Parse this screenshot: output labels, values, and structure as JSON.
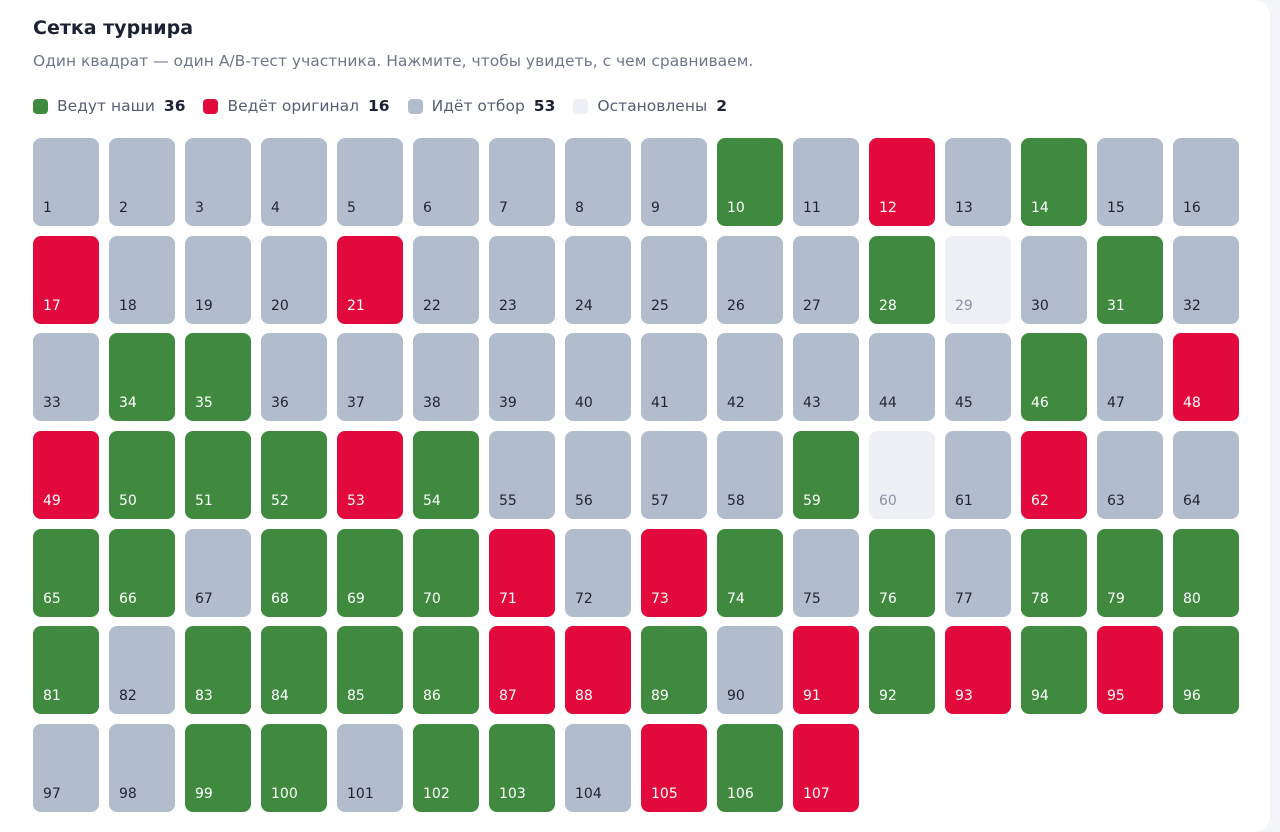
{
  "header": {
    "title": "Сетка турнира",
    "subtitle": "Один квадрат — один A/B-тест участника. Нажмите, чтобы увидеть, с чем сравниваем."
  },
  "legend": [
    {
      "status": "ours",
      "label": "Ведут наши",
      "count": "36",
      "color": "#3f8a3f"
    },
    {
      "status": "orig",
      "label": "Ведёт оригинал",
      "count": "16",
      "color": "#e2093c"
    },
    {
      "status": "pending",
      "label": "Идёт отбор",
      "count": "53",
      "color": "#b1bccd"
    },
    {
      "status": "stopped",
      "label": "Остановлены",
      "count": "2",
      "color": "#eef0f5"
    }
  ],
  "grid": {
    "cells": [
      {
        "number": "1",
        "status": "pending"
      },
      {
        "number": "2",
        "status": "pending"
      },
      {
        "number": "3",
        "status": "pending"
      },
      {
        "number": "4",
        "status": "pending"
      },
      {
        "number": "5",
        "status": "pending"
      },
      {
        "number": "6",
        "status": "pending"
      },
      {
        "number": "7",
        "status": "pending"
      },
      {
        "number": "8",
        "status": "pending"
      },
      {
        "number": "9",
        "status": "pending"
      },
      {
        "number": "10",
        "status": "ours"
      },
      {
        "number": "11",
        "status": "pending"
      },
      {
        "number": "12",
        "status": "orig"
      },
      {
        "number": "13",
        "status": "pending"
      },
      {
        "number": "14",
        "status": "ours"
      },
      {
        "number": "15",
        "status": "pending"
      },
      {
        "number": "16",
        "status": "pending"
      },
      {
        "number": "17",
        "status": "orig"
      },
      {
        "number": "18",
        "status": "pending"
      },
      {
        "number": "19",
        "status": "pending"
      },
      {
        "number": "20",
        "status": "pending"
      },
      {
        "number": "21",
        "status": "orig"
      },
      {
        "number": "22",
        "status": "pending"
      },
      {
        "number": "23",
        "status": "pending"
      },
      {
        "number": "24",
        "status": "pending"
      },
      {
        "number": "25",
        "status": "pending"
      },
      {
        "number": "26",
        "status": "pending"
      },
      {
        "number": "27",
        "status": "pending"
      },
      {
        "number": "28",
        "status": "ours"
      },
      {
        "number": "29",
        "status": "stopped"
      },
      {
        "number": "30",
        "status": "pending"
      },
      {
        "number": "31",
        "status": "ours"
      },
      {
        "number": "32",
        "status": "pending"
      },
      {
        "number": "33",
        "status": "pending"
      },
      {
        "number": "34",
        "status": "ours"
      },
      {
        "number": "35",
        "status": "ours"
      },
      {
        "number": "36",
        "status": "pending"
      },
      {
        "number": "37",
        "status": "pending"
      },
      {
        "number": "38",
        "status": "pending"
      },
      {
        "number": "39",
        "status": "pending"
      },
      {
        "number": "40",
        "status": "pending"
      },
      {
        "number": "41",
        "status": "pending"
      },
      {
        "number": "42",
        "status": "pending"
      },
      {
        "number": "43",
        "status": "pending"
      },
      {
        "number": "44",
        "status": "pending"
      },
      {
        "number": "45",
        "status": "pending"
      },
      {
        "number": "46",
        "status": "ours"
      },
      {
        "number": "47",
        "status": "pending"
      },
      {
        "number": "48",
        "status": "orig"
      },
      {
        "number": "49",
        "status": "orig"
      },
      {
        "number": "50",
        "status": "ours"
      },
      {
        "number": "51",
        "status": "ours"
      },
      {
        "number": "52",
        "status": "ours"
      },
      {
        "number": "53",
        "status": "orig"
      },
      {
        "number": "54",
        "status": "ours"
      },
      {
        "number": "55",
        "status": "pending"
      },
      {
        "number": "56",
        "status": "pending"
      },
      {
        "number": "57",
        "status": "pending"
      },
      {
        "number": "58",
        "status": "pending"
      },
      {
        "number": "59",
        "status": "ours"
      },
      {
        "number": "60",
        "status": "stopped"
      },
      {
        "number": "61",
        "status": "pending"
      },
      {
        "number": "62",
        "status": "orig"
      },
      {
        "number": "63",
        "status": "pending"
      },
      {
        "number": "64",
        "status": "pending"
      },
      {
        "number": "65",
        "status": "ours"
      },
      {
        "number": "66",
        "status": "ours"
      },
      {
        "number": "67",
        "status": "pending"
      },
      {
        "number": "68",
        "status": "ours"
      },
      {
        "number": "69",
        "status": "ours"
      },
      {
        "number": "70",
        "status": "ours"
      },
      {
        "number": "71",
        "status": "orig"
      },
      {
        "number": "72",
        "status": "pending"
      },
      {
        "number": "73",
        "status": "orig"
      },
      {
        "number": "74",
        "status": "ours"
      },
      {
        "number": "75",
        "status": "pending"
      },
      {
        "number": "76",
        "status": "ours"
      },
      {
        "number": "77",
        "status": "pending"
      },
      {
        "number": "78",
        "status": "ours"
      },
      {
        "number": "79",
        "status": "ours"
      },
      {
        "number": "80",
        "status": "ours"
      },
      {
        "number": "81",
        "status": "ours"
      },
      {
        "number": "82",
        "status": "pending"
      },
      {
        "number": "83",
        "status": "ours"
      },
      {
        "number": "84",
        "status": "ours"
      },
      {
        "number": "85",
        "status": "ours"
      },
      {
        "number": "86",
        "status": "ours"
      },
      {
        "number": "87",
        "status": "orig"
      },
      {
        "number": "88",
        "status": "orig"
      },
      {
        "number": "89",
        "status": "ours"
      },
      {
        "number": "90",
        "status": "pending"
      },
      {
        "number": "91",
        "status": "orig"
      },
      {
        "number": "92",
        "status": "ours"
      },
      {
        "number": "93",
        "status": "orig"
      },
      {
        "number": "94",
        "status": "ours"
      },
      {
        "number": "95",
        "status": "orig"
      },
      {
        "number": "96",
        "status": "ours"
      },
      {
        "number": "97",
        "status": "pending"
      },
      {
        "number": "98",
        "status": "pending"
      },
      {
        "number": "99",
        "status": "ours"
      },
      {
        "number": "100",
        "status": "ours"
      },
      {
        "number": "101",
        "status": "pending"
      },
      {
        "number": "102",
        "status": "ours"
      },
      {
        "number": "103",
        "status": "ours"
      },
      {
        "number": "104",
        "status": "pending"
      },
      {
        "number": "105",
        "status": "orig"
      },
      {
        "number": "106",
        "status": "ours"
      },
      {
        "number": "107",
        "status": "orig"
      }
    ]
  }
}
